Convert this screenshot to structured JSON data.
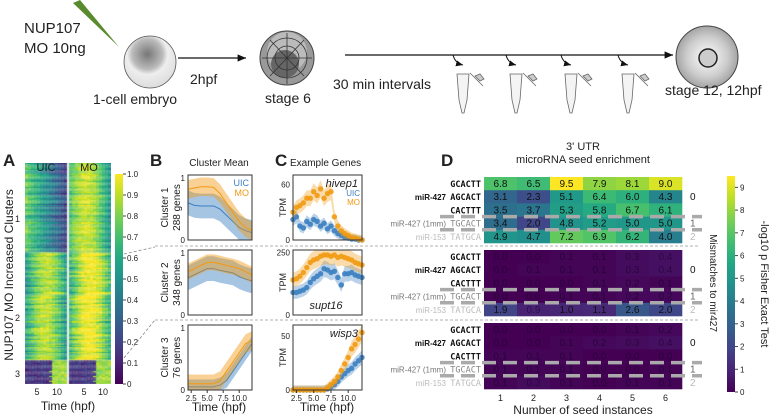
{
  "schematic": {
    "injection_line1": "NUP107",
    "injection_line2": "MO 10ng",
    "stage1_label": "1-cell embryo",
    "arrow1_label": "2hpf",
    "stage2_label": "stage 6",
    "arrow2_label": "30 min intervals",
    "stage3_label": "stage 12, 12hpf",
    "pipette_color": "#5a8a2e"
  },
  "panel_labels": {
    "a": "A",
    "b": "B",
    "c": "C",
    "d": "D"
  },
  "chart_data": [
    {
      "id": "A",
      "type": "heatmap",
      "column_groups": [
        "UIC",
        "MO"
      ],
      "ylabel": "NUP107 MO Increased Clusters",
      "xlabel": "Time (hpf)",
      "xticks": [
        "5",
        "10",
        "5",
        "10"
      ],
      "cluster_labels": [
        "1",
        "2",
        "3"
      ],
      "cluster_sizes": [
        288,
        348,
        76
      ],
      "colorbar": {
        "range": [
          0,
          1
        ],
        "ticks": [
          "0",
          "0.1",
          "0.2",
          "0.3",
          "0.4",
          "0.5",
          "0.6",
          "0.7",
          "0.8",
          "0.9",
          "1.0"
        ]
      }
    },
    {
      "id": "B",
      "type": "line",
      "title": "Cluster Mean",
      "xlabel": "Time (hpf)",
      "xlim": [
        2,
        12
      ],
      "xticks": [
        "2.5",
        "5.0",
        "7.5",
        "10.0"
      ],
      "ylim": [
        0,
        1.05
      ],
      "yticks": [
        "0",
        "1"
      ],
      "legend": [
        "UIC",
        "MO"
      ],
      "legend_placement": "top-right",
      "x": [
        2,
        3,
        4,
        5,
        6,
        7,
        8,
        9,
        10,
        11,
        12
      ],
      "panels": [
        {
          "label1": "Cluster 1",
          "label2": "288 genes",
          "series": [
            {
              "name": "UIC",
              "values": [
                0.6,
                0.56,
                0.55,
                0.55,
                0.55,
                0.5,
                0.4,
                0.3,
                0.2,
                0.15,
                0.12
              ],
              "sd": 0.2
            },
            {
              "name": "MO",
              "values": [
                0.82,
                0.84,
                0.86,
                0.86,
                0.85,
                0.75,
                0.6,
                0.45,
                0.3,
                0.2,
                0.15
              ],
              "sd": 0.15
            }
          ]
        },
        {
          "label1": "Cluster 2",
          "label2": "348 genes",
          "series": [
            {
              "name": "UIC",
              "values": [
                0.6,
                0.65,
                0.7,
                0.75,
                0.75,
                0.72,
                0.7,
                0.68,
                0.62,
                0.58,
                0.55
              ],
              "sd": 0.2
            },
            {
              "name": "MO",
              "values": [
                0.7,
                0.75,
                0.8,
                0.85,
                0.85,
                0.83,
                0.8,
                0.78,
                0.75,
                0.7,
                0.65
              ],
              "sd": 0.13
            }
          ]
        },
        {
          "label1": "Cluster 3",
          "label2": "76 genes",
          "series": [
            {
              "name": "UIC",
              "values": [
                0.05,
                0.05,
                0.05,
                0.05,
                0.05,
                0.08,
                0.15,
                0.3,
                0.45,
                0.6,
                0.75
              ],
              "sd": 0.12
            },
            {
              "name": "MO",
              "values": [
                0.1,
                0.1,
                0.1,
                0.1,
                0.1,
                0.15,
                0.3,
                0.45,
                0.6,
                0.75,
                0.8
              ],
              "sd": 0.15
            }
          ]
        }
      ]
    },
    {
      "id": "C",
      "type": "scatter",
      "title": "Example Genes",
      "xlabel": "Time (hpf)",
      "ylabel": "TPM",
      "xlim": [
        2,
        12
      ],
      "xticks": [
        "2.5",
        "5.0",
        "7.5",
        "10.0"
      ],
      "legend": [
        "UIC",
        "MO"
      ],
      "x": [
        2,
        2.5,
        3,
        3.5,
        4,
        4.5,
        5,
        5.5,
        6,
        6.5,
        7,
        7.5,
        8,
        8.5,
        9,
        9.5,
        10,
        10.5,
        11,
        11.5,
        12
      ],
      "panels": [
        {
          "gene": "hivep1",
          "ylim": [
            0,
            70
          ],
          "yticks": [
            "0",
            "60"
          ],
          "series": [
            {
              "name": "UIC",
              "values": [
                22,
                25,
                15,
                13,
                20,
                17,
                22,
                20,
                15,
                18,
                12,
                15,
                10,
                7,
                5,
                3,
                2,
                1,
                1,
                0,
                0
              ]
            },
            {
              "name": "MO",
              "values": [
                30,
                35,
                37,
                40,
                45,
                45,
                52,
                48,
                55,
                45,
                50,
                52,
                25,
                15,
                10,
                7,
                5,
                3,
                2,
                1,
                0
              ]
            }
          ]
        },
        {
          "gene": "supt16",
          "ylim": [
            0,
            260
          ],
          "yticks": [
            "0",
            "250"
          ],
          "series": [
            {
              "name": "UIC",
              "values": [
                90,
                90,
                95,
                100,
                110,
                130,
                145,
                155,
                165,
                185,
                180,
                170,
                175,
                150,
                120,
                165,
                165,
                170,
                160,
                155,
                150
              ]
            },
            {
              "name": "MO",
              "values": [
                140,
                145,
                155,
                170,
                190,
                210,
                220,
                225,
                235,
                240,
                240,
                235,
                240,
                230,
                235,
                230,
                225,
                220,
                210,
                205,
                200
              ]
            }
          ]
        },
        {
          "gene": "wisp3",
          "ylim": [
            0,
            60
          ],
          "yticks": [
            "0",
            "50"
          ],
          "series": [
            {
              "name": "UIC",
              "values": [
                0,
                0,
                0,
                0,
                0,
                0,
                0,
                0,
                0,
                0,
                1,
                3,
                5,
                8,
                12,
                15,
                18,
                20,
                24,
                27,
                30
              ]
            },
            {
              "name": "MO",
              "values": [
                0,
                0,
                0,
                0,
                0,
                0,
                0,
                0,
                0,
                0,
                2,
                5,
                8,
                12,
                18,
                24,
                30,
                38,
                42,
                47,
                53
              ]
            }
          ]
        }
      ]
    },
    {
      "id": "D",
      "type": "heatmap",
      "title": "3' UTR",
      "subtitle": "microRNA seed enrichment",
      "xlabel": "Number of seed instances",
      "categories": [
        "1",
        "2",
        "3",
        "4",
        "5",
        "6"
      ],
      "right_label": "Mismatches to mir427",
      "colorbar": {
        "label": "-log10 p Fisher Exact Test",
        "range": [
          0,
          9.5
        ],
        "ticks": [
          "0",
          "1",
          "2",
          "3",
          "4",
          "5",
          "6",
          "7",
          "8",
          "9"
        ]
      },
      "row_seqs": [
        "GCACTT",
        "AGCACT",
        "CACTTT",
        "TGCACT",
        "TATGCA"
      ],
      "row_mirna": [
        "",
        "miR-427",
        "",
        "miR-427 (1mm)",
        "miR-153"
      ],
      "row_mismatch": [
        "",
        "0",
        "",
        "1",
        "2"
      ],
      "blocks": [
        [
          [
            "6.8",
            "6.5",
            "9.5",
            "7.9",
            "8.1",
            "9.0"
          ],
          [
            "3.1",
            "2.3",
            "5.1",
            "6.4",
            "6.0",
            "4.3"
          ],
          [
            "3.5",
            "3.7",
            "5.3",
            "5.8",
            "6.7",
            "6.1"
          ],
          [
            "3.4",
            "2.0",
            "4.8",
            "5.2",
            "5.0",
            "5.0"
          ],
          [
            "4.9",
            "4.7",
            "7.2",
            "6.9",
            "6.2",
            "4.0"
          ]
        ],
        [
          [
            "0.0",
            "0.0",
            "0.1",
            "0.1",
            "0.3",
            "0.4"
          ],
          [
            "0.0",
            "0.1",
            "0.1",
            "0.1",
            "0.3",
            "0.4"
          ],
          [
            "0.0",
            "0.0",
            "0.0",
            "0.1",
            "0.2",
            "0.1"
          ],
          [
            "0.0",
            "0.0",
            "0.1",
            "0.1",
            "0.2",
            "0.2"
          ],
          [
            "1.9",
            "0.9",
            "1.0",
            "1.1",
            "2.6",
            "2.0"
          ]
        ],
        [
          [
            "0.0",
            "0.0",
            "0.0",
            "0.0",
            "0.1",
            "0.2"
          ],
          [
            "0.0",
            "0.0",
            "0.1",
            "0.2",
            "0.3",
            "0.4"
          ],
          [
            "0.1",
            "0.1",
            "0.1",
            "0.0",
            "0.0",
            "0.0"
          ],
          [
            "0.1",
            "0.1",
            "0.1",
            "0.0",
            "0.0",
            "0.1"
          ],
          [
            "0.1",
            "0.3",
            "0.1",
            "0.0",
            "0.1",
            "0.1"
          ]
        ]
      ]
    }
  ],
  "colors": {
    "uic": "#3a7fc1",
    "mo": "#f29a11"
  }
}
